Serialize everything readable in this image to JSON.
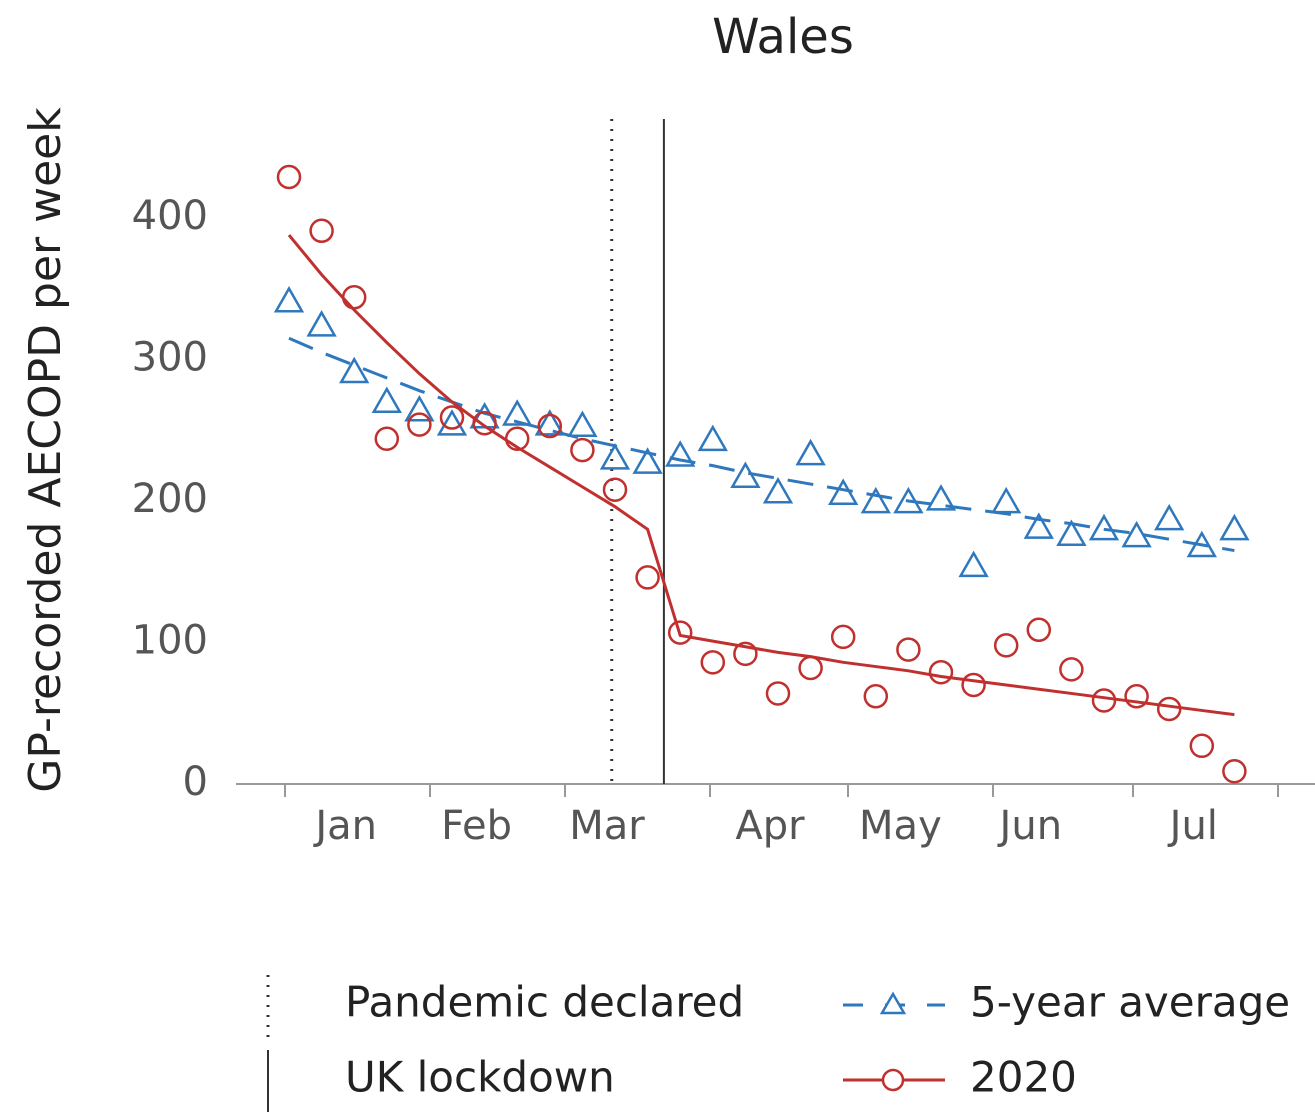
{
  "chart_data": {
    "type": "line",
    "title": "Wales",
    "y_label": "GP-recorded AECOPD per week",
    "categories": [
      null,
      null,
      "Jan",
      null,
      null,
      null,
      "Feb",
      null,
      null,
      null,
      "Mar",
      null,
      null,
      null,
      null,
      "Apr",
      null,
      null,
      null,
      "May",
      null,
      null,
      null,
      "Jun",
      null,
      null,
      null,
      null,
      "Jul",
      null
    ],
    "ylim": [
      0,
      470
    ],
    "yticks": [
      0,
      100,
      200,
      300,
      400
    ],
    "grid": false,
    "legend": "bottom",
    "events": [
      {
        "label": "Pandemic declared",
        "style": "dotted",
        "x": 9.9
      },
      {
        "label": "UK lockdown",
        "style": "solid",
        "x": 11.5
      }
    ],
    "series": [
      {
        "name": "5-year average",
        "color": "#2f78bd",
        "marker": "triangle",
        "trend_style": "dashed",
        "values": [
          341,
          324,
          291,
          270,
          264,
          254,
          259,
          261,
          254,
          253,
          230,
          227,
          232,
          243,
          217,
          206,
          233,
          205,
          199,
          199,
          201,
          154,
          199,
          181,
          176,
          180,
          175,
          187,
          168,
          180
        ],
        "trend": [
          315,
          305,
          296,
          287,
          278,
          270,
          262,
          256,
          250,
          244,
          239,
          234,
          229,
          225,
          220,
          216,
          212,
          208,
          204,
          200,
          197,
          194,
          191,
          187,
          184,
          180,
          177,
          173,
          169,
          165
        ]
      },
      {
        "name": "2020",
        "color": "#c0302e",
        "marker": "circle",
        "trend_style": "solid",
        "values": [
          429,
          391,
          344,
          244,
          254,
          259,
          255,
          244,
          253,
          236,
          208,
          146,
          107,
          86,
          92,
          64,
          82,
          104,
          62,
          95,
          79,
          70,
          98,
          109,
          81,
          59,
          62,
          53,
          27,
          9
        ],
        "trend": [
          388,
          360,
          335,
          312,
          290,
          270,
          253,
          238,
          224,
          210,
          196,
          180,
          105,
          101,
          97,
          93,
          90,
          86,
          83,
          80,
          76,
          73,
          70,
          67,
          64,
          61,
          58,
          55,
          52,
          49
        ]
      }
    ]
  }
}
